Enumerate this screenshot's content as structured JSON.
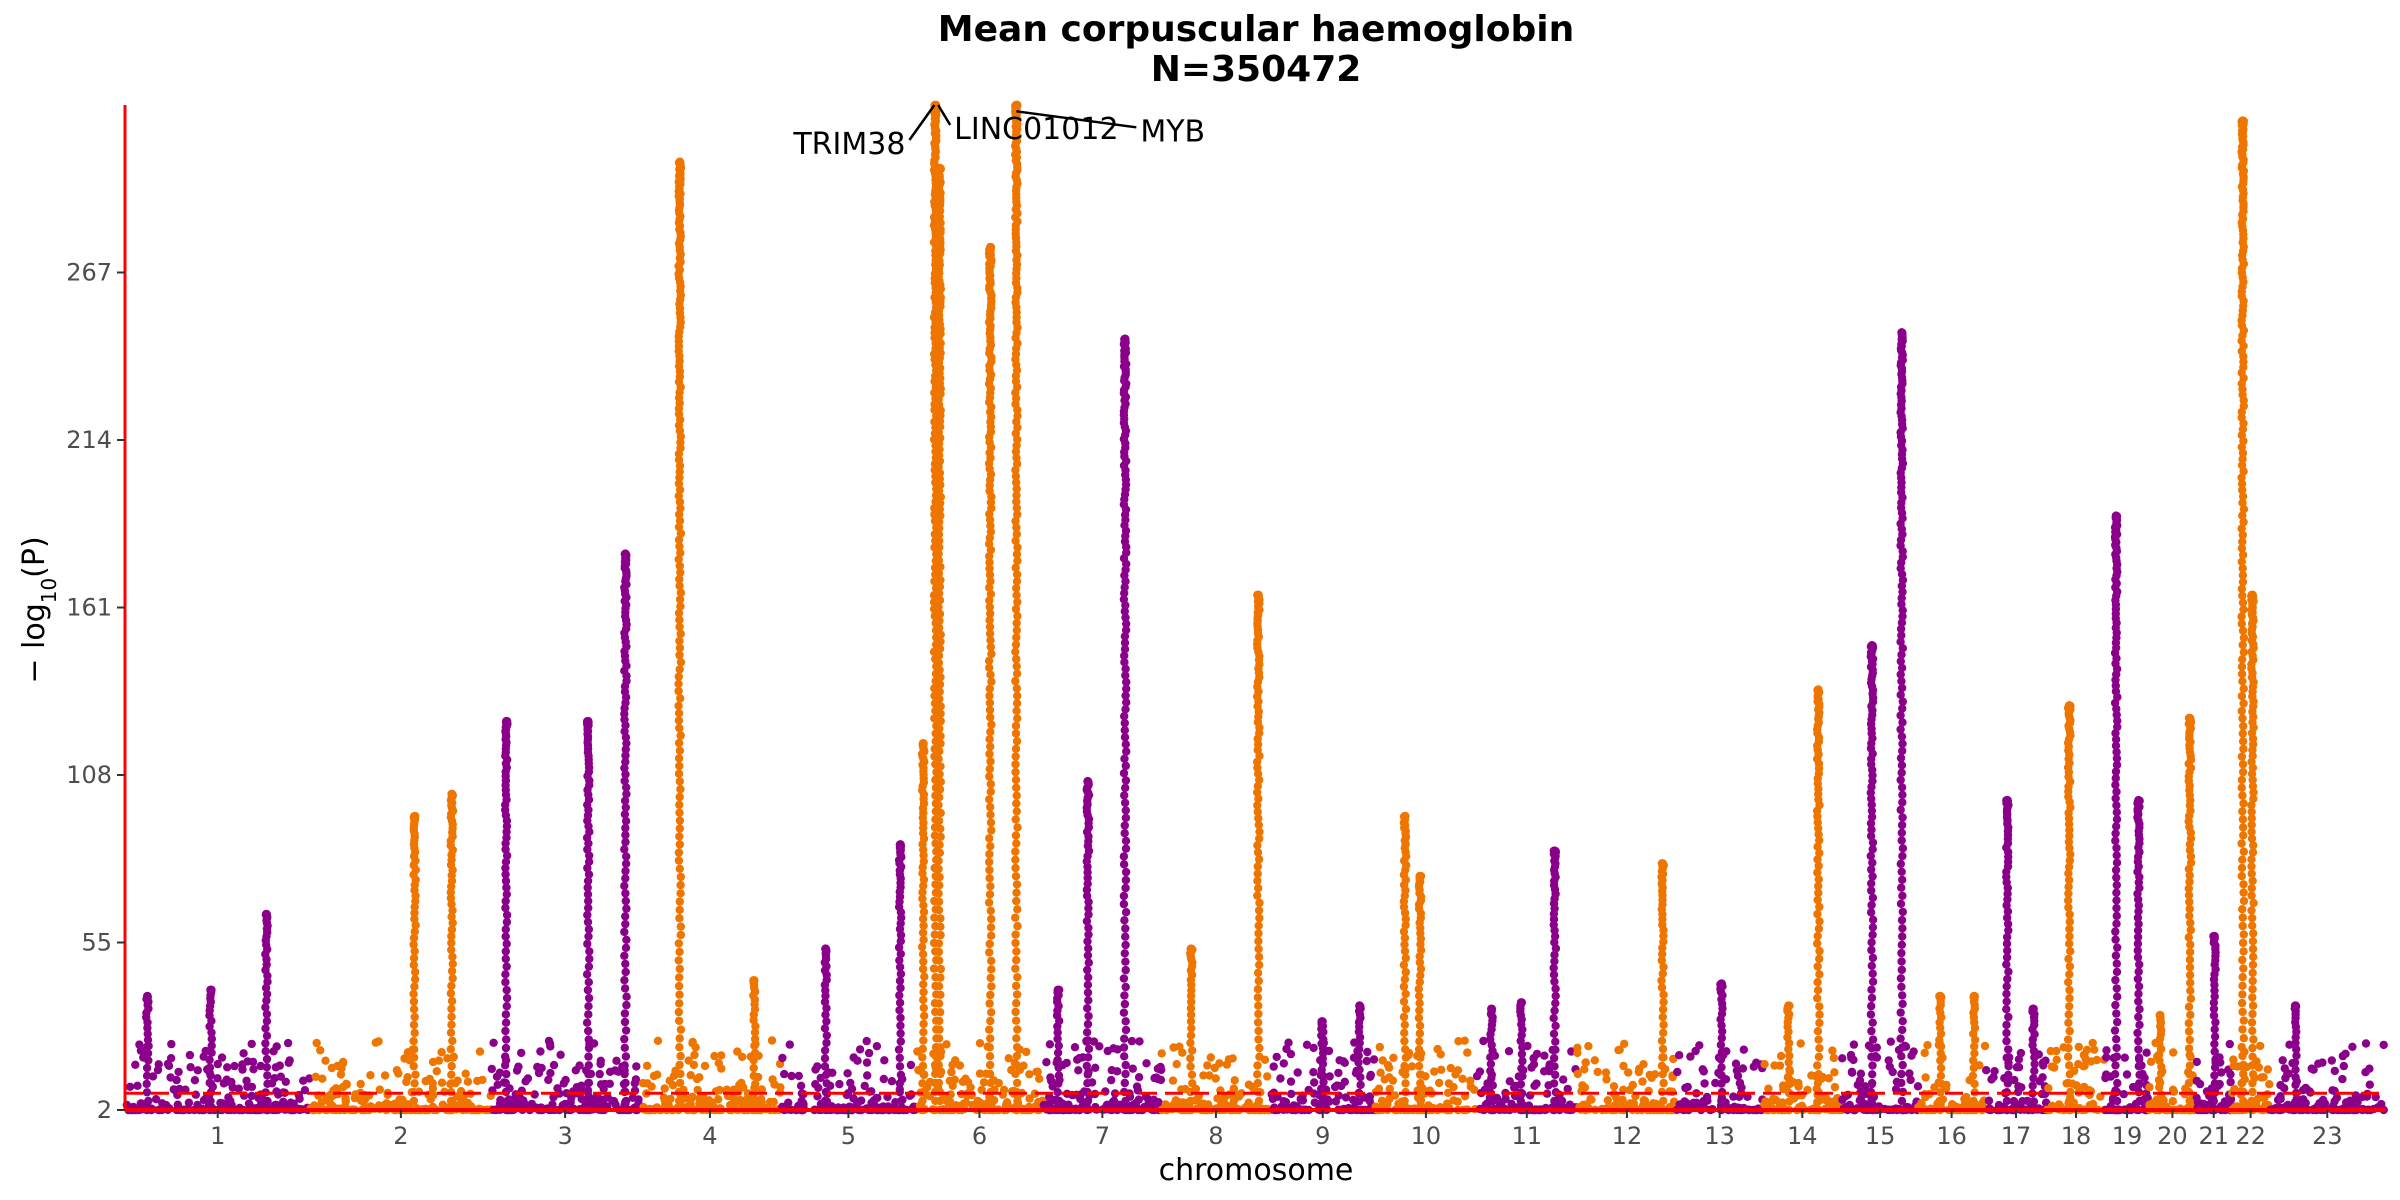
{
  "chart_data": {
    "type": "scatter",
    "subtype": "manhattan",
    "title": "Mean corpuscular haemoglobin",
    "subtitle": "N=350472",
    "xlabel": "chromosome",
    "ylabel": "−log10(P)",
    "y_ticks": [
      2,
      55,
      108,
      161,
      214,
      267
    ],
    "ylim": [
      2,
      320
    ],
    "significance_threshold": 7.3,
    "grid": false,
    "colors": {
      "odd": "#8b008b",
      "even": "#ee7600",
      "threshold": "#ff0000",
      "axis": "#ff0000"
    },
    "chromosomes": [
      {
        "label": "1",
        "start": 0,
        "len": 249
      },
      {
        "label": "2",
        "start": 249,
        "len": 243
      },
      {
        "label": "3",
        "start": 492,
        "len": 198
      },
      {
        "label": "4",
        "start": 690,
        "len": 191
      },
      {
        "label": "5",
        "start": 881,
        "len": 181
      },
      {
        "label": "6",
        "start": 1062,
        "len": 171
      },
      {
        "label": "7",
        "start": 1233,
        "len": 159
      },
      {
        "label": "8",
        "start": 1392,
        "len": 146
      },
      {
        "label": "9",
        "start": 1538,
        "len": 141
      },
      {
        "label": "10",
        "start": 1679,
        "len": 136
      },
      {
        "label": "11",
        "start": 1815,
        "len": 135
      },
      {
        "label": "12",
        "start": 1950,
        "len": 134
      },
      {
        "label": "13",
        "start": 2084,
        "len": 115
      },
      {
        "label": "14",
        "start": 2199,
        "len": 107
      },
      {
        "label": "15",
        "start": 2306,
        "len": 102
      },
      {
        "label": "16",
        "start": 2408,
        "len": 90
      },
      {
        "label": "17",
        "start": 2498,
        "len": 83
      },
      {
        "label": "18",
        "start": 2581,
        "len": 78
      },
      {
        "label": "19",
        "start": 2659,
        "len": 59
      },
      {
        "label": "20",
        "start": 2718,
        "len": 63
      },
      {
        "label": "21",
        "start": 2781,
        "len": 48
      },
      {
        "label": "22",
        "start": 2829,
        "len": 51
      },
      {
        "label": "23",
        "start": 2880,
        "len": 155
      }
    ],
    "x_max": 3035,
    "peaks": [
      {
        "chr": "1",
        "pos": 30,
        "p": 38
      },
      {
        "chr": "1",
        "pos": 115,
        "p": 40
      },
      {
        "chr": "1",
        "pos": 190,
        "p": 64
      },
      {
        "chr": "2",
        "pos": 140,
        "p": 95
      },
      {
        "chr": "2",
        "pos": 190,
        "p": 102
      },
      {
        "chr": "3",
        "pos": 20,
        "p": 125
      },
      {
        "chr": "3",
        "pos": 130,
        "p": 125
      },
      {
        "chr": "3",
        "pos": 180,
        "p": 178
      },
      {
        "chr": "4",
        "pos": 55,
        "p": 302
      },
      {
        "chr": "4",
        "pos": 155,
        "p": 43
      },
      {
        "chr": "5",
        "pos": 60,
        "p": 53
      },
      {
        "chr": "5",
        "pos": 160,
        "p": 86
      },
      {
        "chr": "6",
        "pos": 10,
        "p": 118
      },
      {
        "chr": "6",
        "pos": 26,
        "p": 320
      },
      {
        "chr": "6",
        "pos": 32,
        "p": 300
      },
      {
        "chr": "6",
        "pos": 100,
        "p": 275
      },
      {
        "chr": "6",
        "pos": 135,
        "p": 320
      },
      {
        "chr": "7",
        "pos": 20,
        "p": 40
      },
      {
        "chr": "7",
        "pos": 60,
        "p": 106
      },
      {
        "chr": "7",
        "pos": 110,
        "p": 246
      },
      {
        "chr": "8",
        "pos": 40,
        "p": 53
      },
      {
        "chr": "8",
        "pos": 130,
        "p": 165
      },
      {
        "chr": "9",
        "pos": 70,
        "p": 30
      },
      {
        "chr": "9",
        "pos": 120,
        "p": 35
      },
      {
        "chr": "10",
        "pos": 40,
        "p": 95
      },
      {
        "chr": "10",
        "pos": 60,
        "p": 76
      },
      {
        "chr": "11",
        "pos": 20,
        "p": 34
      },
      {
        "chr": "11",
        "pos": 60,
        "p": 36
      },
      {
        "chr": "11",
        "pos": 105,
        "p": 84
      },
      {
        "chr": "12",
        "pos": 115,
        "p": 80
      },
      {
        "chr": "13",
        "pos": 60,
        "p": 42
      },
      {
        "chr": "14",
        "pos": 35,
        "p": 35
      },
      {
        "chr": "14",
        "pos": 75,
        "p": 135
      },
      {
        "chr": "15",
        "pos": 40,
        "p": 149
      },
      {
        "chr": "15",
        "pos": 80,
        "p": 248
      },
      {
        "chr": "16",
        "pos": 30,
        "p": 38
      },
      {
        "chr": "16",
        "pos": 75,
        "p": 38
      },
      {
        "chr": "17",
        "pos": 30,
        "p": 100
      },
      {
        "chr": "17",
        "pos": 65,
        "p": 34
      },
      {
        "chr": "18",
        "pos": 30,
        "p": 130
      },
      {
        "chr": "19",
        "pos": 15,
        "p": 190
      },
      {
        "chr": "19",
        "pos": 45,
        "p": 100
      },
      {
        "chr": "20",
        "pos": 15,
        "p": 32
      },
      {
        "chr": "20",
        "pos": 55,
        "p": 126
      },
      {
        "chr": "21",
        "pos": 25,
        "p": 57
      },
      {
        "chr": "22",
        "pos": 15,
        "p": 315
      },
      {
        "chr": "22",
        "pos": 28,
        "p": 165
      },
      {
        "chr": "23",
        "pos": 35,
        "p": 35
      }
    ],
    "annotations": [
      {
        "label": "TRIM38",
        "chr": "6",
        "pos": 25,
        "p": 320
      },
      {
        "label": "LINC01012",
        "chr": "6",
        "pos": 30,
        "p": 320
      },
      {
        "label": "MYB",
        "chr": "6",
        "pos": 135,
        "p": 318
      }
    ]
  }
}
